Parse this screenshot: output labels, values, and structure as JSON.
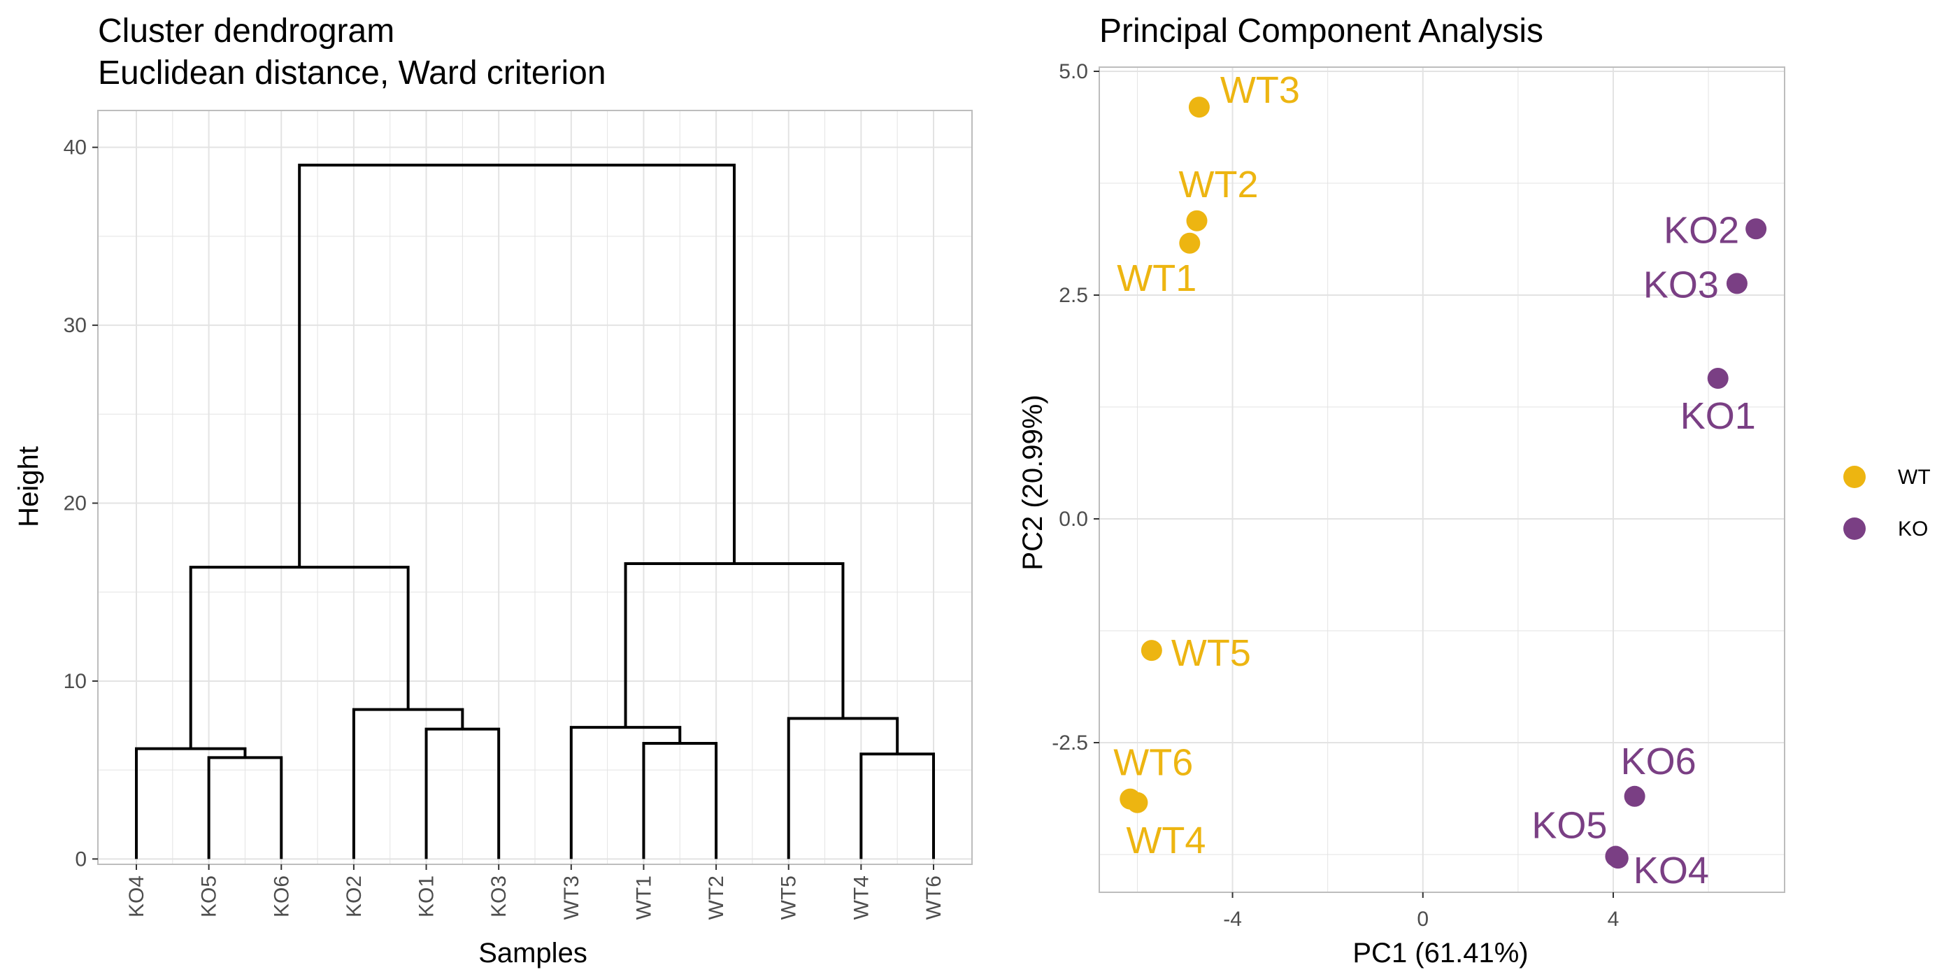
{
  "colors": {
    "WT": "#EDB511",
    "KO": "#7A3F84",
    "grid": "#E3E3E3",
    "panel_border": "#BDBDBD",
    "tick_text": "#4D4D4D"
  },
  "chart_data": [
    {
      "type": "dendrogram",
      "title": "Cluster dendrogram",
      "subtitle": "Euclidean distance, Ward criterion",
      "xlabel": "Samples",
      "ylabel": "Height",
      "ylim": [
        0,
        40
      ],
      "y_ticks": [
        "0",
        "10",
        "20",
        "30",
        "40"
      ],
      "leaves": [
        "KO4",
        "KO5",
        "KO6",
        "KO2",
        "KO1",
        "KO3",
        "WT3",
        "WT1",
        "WT2",
        "WT5",
        "WT4",
        "WT6"
      ],
      "merges": [
        {
          "left": "KO5",
          "right": "KO6",
          "height": 5.7
        },
        {
          "left": "KO4",
          "right": "KO5+KO6",
          "height": 6.2
        },
        {
          "left": "KO1",
          "right": "KO3",
          "height": 7.3
        },
        {
          "left": "KO2",
          "right": "KO1+KO3",
          "height": 8.4
        },
        {
          "left": "KO4+KO5+KO6",
          "right": "KO2+KO1+KO3",
          "height": 16.4
        },
        {
          "left": "WT1",
          "right": "WT2",
          "height": 6.5
        },
        {
          "left": "WT3",
          "right": "WT1+WT2",
          "height": 7.4
        },
        {
          "left": "WT4",
          "right": "WT6",
          "height": 5.9
        },
        {
          "left": "WT5",
          "right": "WT4+WT6",
          "height": 7.9
        },
        {
          "left": "WT3+WT1+WT2",
          "right": "WT5+WT4+WT6",
          "height": 16.6
        },
        {
          "left": "KO",
          "right": "WT",
          "height": 39.0
        }
      ],
      "grid": true
    },
    {
      "type": "scatter",
      "title": "Principal Component Analysis",
      "xlabel": "PC1 (61.41%)",
      "ylabel": "PC2 (20.99%)",
      "xlim": [
        -6.8,
        7.6
      ],
      "ylim": [
        -4.2,
        5.0
      ],
      "x_ticks": [
        -4,
        0,
        4
      ],
      "y_ticks": [
        -2.5,
        0.0,
        2.5,
        5.0
      ],
      "y_tick_labels": [
        "-2.5",
        "0.0",
        "2.5",
        "5.0"
      ],
      "grid": true,
      "legend": {
        "placement": "right",
        "entries": [
          {
            "name": "WT"
          },
          {
            "name": "KO"
          }
        ]
      },
      "points": [
        {
          "label": "WT3",
          "group": "WT",
          "x": -4.7,
          "y": 4.6
        },
        {
          "label": "WT2",
          "group": "WT",
          "x": -4.75,
          "y": 3.33
        },
        {
          "label": "WT1",
          "group": "WT",
          "x": -4.9,
          "y": 3.08
        },
        {
          "label": "WT5",
          "group": "WT",
          "x": -5.7,
          "y": -1.47
        },
        {
          "label": "WT6",
          "group": "WT",
          "x": -6.15,
          "y": -3.13
        },
        {
          "label": "WT4",
          "group": "WT",
          "x": -6.0,
          "y": -3.17
        },
        {
          "label": "KO2",
          "group": "KO",
          "x": 7.0,
          "y": 3.24
        },
        {
          "label": "KO3",
          "group": "KO",
          "x": 6.6,
          "y": 2.63
        },
        {
          "label": "KO1",
          "group": "KO",
          "x": 6.2,
          "y": 1.57
        },
        {
          "label": "KO6",
          "group": "KO",
          "x": 4.45,
          "y": -3.1
        },
        {
          "label": "KO5",
          "group": "KO",
          "x": 4.05,
          "y": -3.77
        },
        {
          "label": "KO4",
          "group": "KO",
          "x": 4.1,
          "y": -3.79
        }
      ]
    }
  ]
}
